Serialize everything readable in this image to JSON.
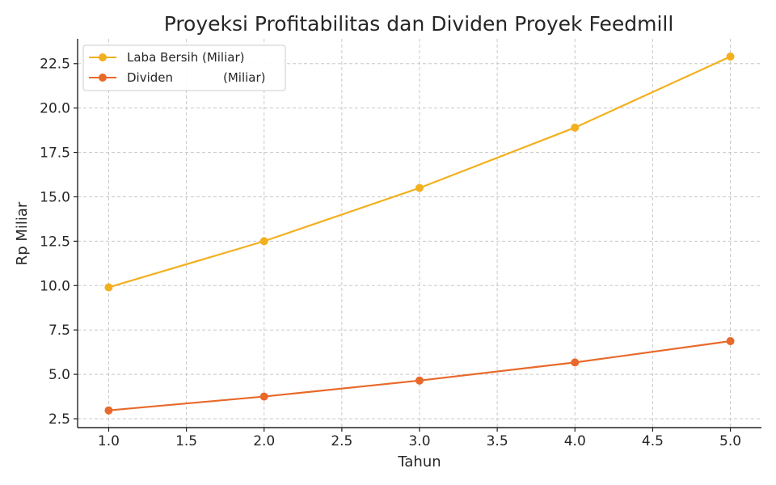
{
  "chart_data": {
    "type": "line",
    "title": "Proyeksi Profitabilitas dan Dividen Proyek Feedmill",
    "xlabel": "Tahun",
    "ylabel": "Rp Miliar",
    "xlim": [
      0.8,
      5.2
    ],
    "ylim": [
      2.0,
      23.9
    ],
    "xticks": [
      1.0,
      1.5,
      2.0,
      2.5,
      3.0,
      3.5,
      4.0,
      4.5,
      5.0
    ],
    "yticks": [
      2.5,
      5.0,
      7.5,
      10.0,
      12.5,
      15.0,
      17.5,
      20.0,
      22.5
    ],
    "grid": true,
    "legend_position": "upper-left",
    "series": [
      {
        "name": "Laba Bersih (Miliar)",
        "color": "#F2B01E",
        "x": [
          1,
          2,
          3,
          4,
          5
        ],
        "values": [
          9.9,
          12.5,
          15.5,
          18.9,
          22.9
        ]
      },
      {
        "name": "Dividen             (Miliar)",
        "color": "#E8692A",
        "x": [
          1,
          2,
          3,
          4,
          5
        ],
        "values": [
          2.97,
          3.75,
          4.65,
          5.67,
          6.87
        ]
      }
    ]
  }
}
